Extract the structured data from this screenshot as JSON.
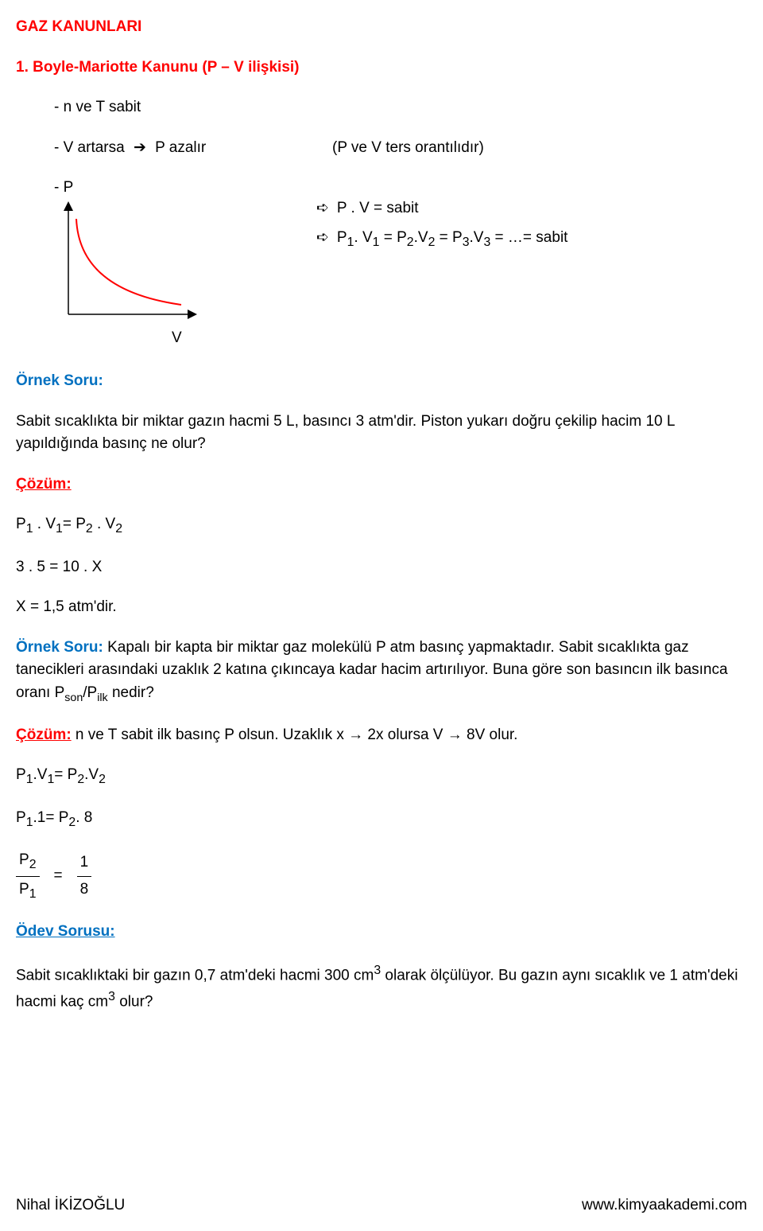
{
  "heading_main": "GAZ KANUNLARI",
  "heading_sub": "1. Boyle-Mariotte Kanunu (P – V ilişkisi)",
  "cond1": "- n ve T sabit",
  "cond2_left": "- V artarsa ",
  "cond2_right": " P azalır",
  "cond2_note": "(P ve V ters orantılıdır)",
  "cond3": "- P",
  "formula_line1": "P . V = sabit",
  "formula_line2_html": "P<sub>1</sub>. V<sub>1</sub> = P<sub>2</sub>.V<sub>2</sub> = P<sub>3</sub>.V<sub>3</sub> = …= sabit",
  "graph": {
    "y_label": "P",
    "x_label": "V",
    "axis_color": "#000000",
    "curve_color": "#ff0000",
    "curve_width": 2
  },
  "ornek_label": "Örnek Soru:",
  "ornek1_text": "Sabit sıcaklıkta bir miktar gazın hacmi 5 L, basıncı 3 atm'dir. Piston yukarı doğru çekilip hacim 10 L yapıldığında basınç ne olur?",
  "cozum_label": "Çözüm:",
  "coz1_l1_html": "P<sub>1</sub> . V<sub>1</sub>= P<sub>2</sub> . V<sub>2</sub>",
  "coz1_l2": "3 . 5 = 10 . X",
  "coz1_l3": "X = 1,5 atm'dir.",
  "ornek2_label": "Örnek Soru:",
  "ornek2_text": " Kapalı bir kapta bir miktar gaz molekülü P atm basınç yapmaktadır. Sabit sıcaklıkta gaz tanecikleri arasındaki uzaklık 2 katına çıkıncaya kadar hacim artırılıyor. Buna göre son basıncın ilk basınca oranı P",
  "ornek2_text_tail": " nedir?",
  "ornek2_sub1": "son",
  "ornek2_sub2": "ilk",
  "cozum2_label": "Çözüm:",
  "cozum2_text": " n ve T sabit ilk basınç P olsun. Uzaklık x → 2x olursa V → 8V olur.",
  "eq2_l1_html": "P<sub>1</sub>.V<sub>1</sub>= P<sub>2</sub>.V<sub>2</sub>",
  "eq2_l2_html": "P<sub>1</sub>.1= P<sub>2</sub>. 8",
  "frac_left_num_html": "P<sub>2</sub>",
  "frac_left_den_html": "P<sub>1</sub>",
  "frac_right_num": "1",
  "frac_right_den": "8",
  "odev_label": "Ödev Sorusu:",
  "odev_text_html": "Sabit sıcaklıktaki bir gazın 0,7 atm'deki hacmi 300 cm<sup>3</sup> olarak ölçülüyor. Bu gazın aynı sıcaklık ve 1 atm'deki hacmi kaç cm<sup>3</sup> olur?",
  "footer_left": "Nihal İKİZOĞLU",
  "footer_right": "www.kimyaakademi.com"
}
